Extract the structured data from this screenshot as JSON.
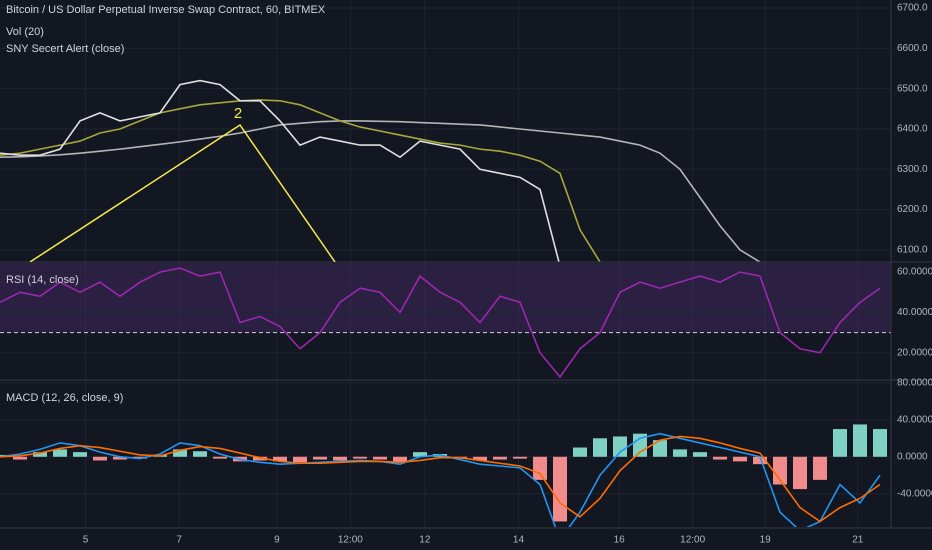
{
  "chart_data": [
    {
      "type": "line",
      "title": "Bitcoin / US Dollar Perpetual Inverse Swap Contract, 60, BITMEX",
      "subtitles": [
        "Vol (20)",
        "SNY Secert Alert (close)"
      ],
      "annotations": [
        "2"
      ],
      "ylim": [
        6070,
        6720
      ],
      "yticks": [
        {
          "value": 6100,
          "label": "6100.0"
        },
        {
          "value": 6200,
          "label": "6200.0"
        },
        {
          "value": 6300,
          "label": "6300.0"
        },
        {
          "value": 6400,
          "label": "6400.0"
        },
        {
          "value": 6500,
          "label": "6500.0"
        },
        {
          "value": 6600,
          "label": "6600.0"
        },
        {
          "value": 6700,
          "label": "6700.0"
        }
      ],
      "grid": true,
      "series": [
        {
          "color": "#b5b5b5",
          "values": [
            6330,
            6331,
            6333,
            6336,
            6340,
            6345,
            6350,
            6356,
            6362,
            6368,
            6375,
            6382,
            6390,
            6400,
            6410,
            6414,
            6418,
            6420,
            6420,
            6419,
            6418,
            6416,
            6414,
            6412,
            6410,
            6405,
            6400,
            6395,
            6390,
            6385,
            6380,
            6370,
            6360,
            6340,
            6300,
            6230,
            6160,
            6100,
            6070,
            null,
            null,
            null,
            null,
            null,
            null
          ]
        },
        {
          "color": "#a8a83a",
          "values": [
            6335,
            6340,
            6350,
            6360,
            6370,
            6390,
            6400,
            6420,
            6440,
            6450,
            6460,
            6465,
            6470,
            6472,
            6470,
            6460,
            6440,
            6420,
            6405,
            6395,
            6385,
            6375,
            6365,
            6360,
            6350,
            6345,
            6335,
            6320,
            6290,
            6150,
            6070,
            null,
            null,
            null,
            null,
            null,
            null,
            null,
            null,
            null,
            null,
            null,
            null,
            null,
            null
          ]
        },
        {
          "color": "#e0e0e0",
          "values": [
            6340,
            6335,
            6335,
            6350,
            6420,
            6440,
            6420,
            6430,
            6440,
            6510,
            6520,
            6510,
            6470,
            6470,
            6420,
            6360,
            6380,
            6370,
            6360,
            6360,
            6330,
            6370,
            6360,
            6350,
            6300,
            6290,
            6280,
            6250,
            6060,
            null,
            null,
            null,
            null,
            null,
            null,
            null,
            null,
            null,
            null,
            null,
            null,
            null,
            null,
            null,
            null
          ]
        }
      ]
    },
    {
      "type": "line",
      "title": "RSI (14, close)",
      "ylim": [
        7,
        64.5
      ],
      "yticks": [
        {
          "value": 20,
          "label": "20.0000"
        },
        {
          "value": 40,
          "label": "40.0000"
        },
        {
          "value": 60,
          "label": "60.0000"
        }
      ],
      "grid": true,
      "reference_line": 30,
      "band": [
        30,
        70
      ],
      "band_color": "#4a2a6a",
      "series": [
        {
          "color": "#9c27b0",
          "values": [
            45,
            50,
            48,
            55,
            50,
            55,
            48,
            55,
            60,
            62,
            58,
            60,
            35,
            38,
            33,
            22,
            30,
            45,
            52,
            50,
            40,
            58,
            50,
            45,
            35,
            48,
            45,
            20,
            8,
            22,
            30,
            50,
            55,
            52,
            55,
            58,
            55,
            60,
            58,
            30,
            22,
            20,
            35,
            45,
            52
          ]
        }
      ]
    },
    {
      "type": "combo",
      "title": "MACD (12, 26, close, 9)",
      "ylim": [
        -76,
        82
      ],
      "yticks": [
        {
          "value": 80,
          "label": "80.0000"
        },
        {
          "value": 40,
          "label": "40.0000"
        },
        {
          "value": 0,
          "label": "0.0000"
        },
        {
          "value": -40,
          "label": "-40.0000"
        }
      ],
      "grid": true,
      "xlim": [
        0,
        44.25
      ],
      "xticks": [
        {
          "value": 4.25,
          "label": "5"
        },
        {
          "value": 8.9,
          "label": "7"
        },
        {
          "value": 13.75,
          "label": "9"
        },
        {
          "value": 17.4,
          "label": "12:00"
        },
        {
          "value": 21.1,
          "label": "12"
        },
        {
          "value": 25.75,
          "label": "14"
        },
        {
          "value": 30.75,
          "label": "16"
        },
        {
          "value": 34.4,
          "label": "12:00"
        },
        {
          "value": 38,
          "label": "19"
        },
        {
          "value": 42.6,
          "label": "21"
        }
      ],
      "series": [
        {
          "style": "histogram",
          "up_color": "#7fd1c4",
          "down_color": "#f28b8b",
          "values": [
            2,
            -3,
            5,
            8,
            5,
            -4,
            -3,
            -2,
            2,
            8,
            6,
            -2,
            -5,
            -4,
            -5,
            -6,
            -3,
            -4,
            -2,
            -3,
            -6,
            5,
            3,
            -2,
            -4,
            -3,
            -2,
            -25,
            -70,
            10,
            20,
            22,
            25,
            18,
            8,
            5,
            -3,
            -5,
            -8,
            -30,
            -35,
            -25,
            30,
            35,
            30
          ]
        },
        {
          "style": "line",
          "color": "#2196f3",
          "values": [
            0,
            3,
            8,
            15,
            12,
            5,
            0,
            -2,
            3,
            15,
            12,
            3,
            -3,
            -6,
            -8,
            -7,
            -6,
            -5,
            -4,
            -5,
            -8,
            0,
            2,
            -3,
            -8,
            -10,
            -12,
            -30,
            -90,
            -60,
            -20,
            5,
            20,
            25,
            20,
            15,
            10,
            5,
            0,
            -60,
            -80,
            -70,
            -30,
            -50,
            -20
          ]
        },
        {
          "style": "line",
          "color": "#ff6d00",
          "values": [
            0,
            1,
            4,
            9,
            12,
            10,
            6,
            2,
            1,
            7,
            11,
            9,
            4,
            -1,
            -5,
            -7,
            -7,
            -6,
            -5,
            -5,
            -6,
            -4,
            -1,
            -1,
            -4,
            -7,
            -10,
            -18,
            -50,
            -65,
            -45,
            -15,
            5,
            18,
            22,
            20,
            15,
            9,
            4,
            -25,
            -55,
            -70,
            -55,
            -45,
            -30
          ]
        }
      ]
    }
  ]
}
